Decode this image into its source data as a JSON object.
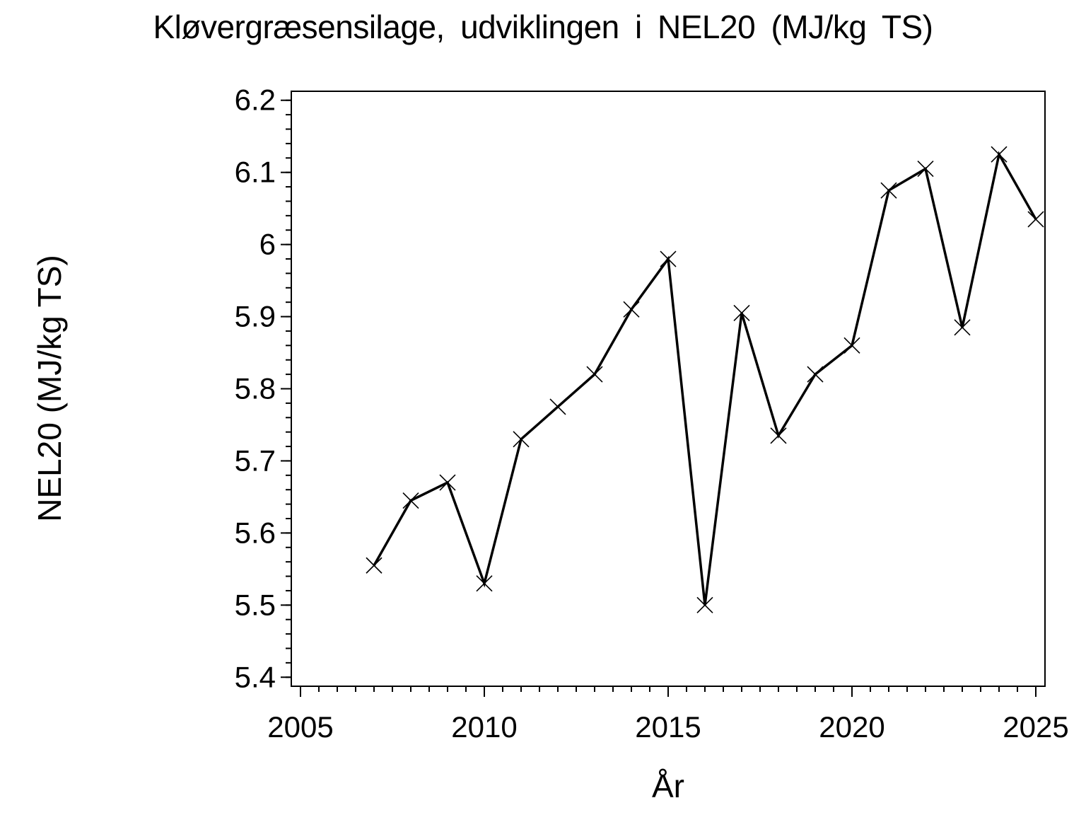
{
  "page": {
    "background": "#ffffff",
    "foreground": "#000000"
  },
  "chart_data": {
    "type": "line",
    "title": "Kløvergræsensilage, udviklingen i NEL20 (MJ/kg TS)",
    "xlabel": "År",
    "ylabel": "NEL20 (MJ/kg TS)",
    "grid": false,
    "legend": "none",
    "line_color": "#000000",
    "marker": "x",
    "xlim": [
      2004.75,
      2025.25
    ],
    "ylim": [
      5.3875,
      6.2125
    ],
    "xticks": {
      "values": [
        2005,
        2010,
        2015,
        2020,
        2025
      ],
      "labels": [
        "2005",
        "2010",
        "2015",
        "2020",
        "2025"
      ],
      "minor_step": 0.5
    },
    "yticks": {
      "values": [
        5.4,
        5.5,
        5.6,
        5.7,
        5.8,
        5.9,
        6.0,
        6.1,
        6.2
      ],
      "labels": [
        "5.4",
        "5.5",
        "5.6",
        "5.7",
        "5.8",
        "5.9",
        "6",
        "6.1",
        "6.2"
      ],
      "minor_step": 0.02
    },
    "series": [
      {
        "name": "NEL20",
        "x": [
          2007,
          2008,
          2009,
          2010,
          2011,
          2012,
          2013,
          2014,
          2015,
          2016,
          2017,
          2018,
          2019,
          2020,
          2021,
          2022,
          2023,
          2024,
          2025
        ],
        "y": [
          5.555,
          5.645,
          5.67,
          5.53,
          5.73,
          5.775,
          5.82,
          5.91,
          5.98,
          5.5,
          5.905,
          5.735,
          5.82,
          5.86,
          6.075,
          6.105,
          5.885,
          6.125,
          6.035
        ]
      }
    ]
  }
}
